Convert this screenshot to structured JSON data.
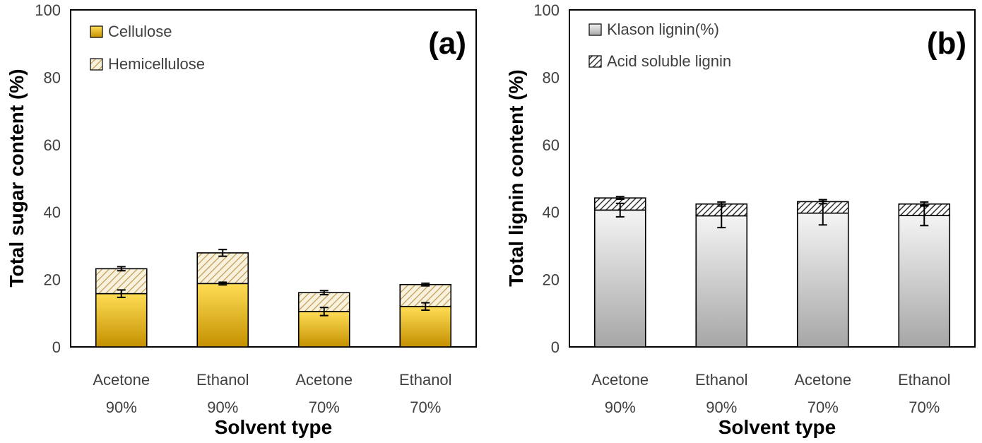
{
  "chart_data": [
    {
      "type": "bar",
      "stacked": true,
      "panel_label": "(a)",
      "title": "",
      "xlabel": "Solvent type",
      "ylabel": "Total sugar content (%)",
      "ylim": [
        0,
        100
      ],
      "yticks": [
        0,
        20,
        40,
        60,
        80,
        100
      ],
      "grid": false,
      "legend_position": "top-left",
      "categories": [
        [
          "Acetone",
          "90%"
        ],
        [
          "Ethanol",
          "90%"
        ],
        [
          "Acetone",
          "70%"
        ],
        [
          "Ethanol",
          "70%"
        ]
      ],
      "series": [
        {
          "name": "Cellulose",
          "values": [
            15.8,
            18.8,
            10.5,
            12.0
          ],
          "errors": [
            1.1,
            0.4,
            1.2,
            1.1
          ],
          "fill": "gold-gradient",
          "colors": {
            "top": "#ffdd55",
            "bottom": "#c49000"
          }
        },
        {
          "name": "Hemicellulose",
          "values": [
            7.4,
            9.1,
            5.6,
            6.5
          ],
          "errors": [
            0.6,
            1.0,
            0.6,
            0.4
          ],
          "fill": "hatch",
          "colors": {
            "top": "#f5efdc",
            "bottom": "#c8a050"
          }
        }
      ]
    },
    {
      "type": "bar",
      "stacked": true,
      "panel_label": "(b)",
      "title": "",
      "xlabel": "Solvent type",
      "ylabel": "Total lignin content (%)",
      "ylim": [
        0,
        100
      ],
      "yticks": [
        0,
        20,
        40,
        60,
        80,
        100
      ],
      "grid": false,
      "legend_position": "top-left",
      "categories": [
        [
          "Acetone",
          "90%"
        ],
        [
          "Ethanol",
          "90%"
        ],
        [
          "Acetone",
          "70%"
        ],
        [
          "Ethanol",
          "70%"
        ]
      ],
      "series": [
        {
          "name": "Klason lignin(%)",
          "values": [
            40.6,
            38.9,
            39.7,
            39.0
          ],
          "errors": [
            2.0,
            3.5,
            3.5,
            3.0
          ],
          "fill": "gray-gradient",
          "colors": {
            "top": "#f2f2f2",
            "bottom": "#a6a6a6"
          }
        },
        {
          "name": "Acid soluble lignin",
          "values": [
            3.6,
            3.5,
            3.4,
            3.4
          ],
          "errors": [
            0.4,
            0.6,
            0.6,
            0.6
          ],
          "fill": "hatch",
          "colors": {
            "top": "#ffffff",
            "bottom": "#333333"
          }
        }
      ]
    }
  ]
}
